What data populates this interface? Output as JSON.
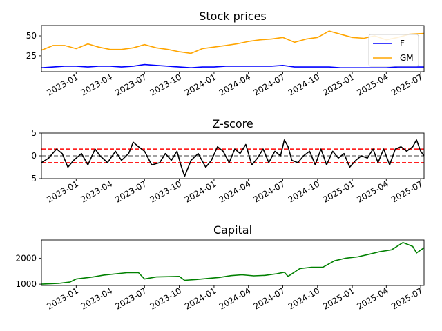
{
  "chart_data": [
    {
      "type": "line",
      "title": "Stock prices",
      "x_range": [
        "2022-10-01",
        "2025-07-10"
      ],
      "y_range": [
        5,
        63
      ],
      "y_ticks": [
        25,
        50
      ],
      "x_ticks": [
        "2023-01",
        "2023-04",
        "2023-07",
        "2023-10",
        "2024-01",
        "2024-04",
        "2024-07",
        "2024-10",
        "2025-01",
        "2025-04",
        "2025-07"
      ],
      "legend_placement": "right",
      "series": [
        {
          "name": "F",
          "color": "#0000ff",
          "x": [
            "2022-10-01",
            "2022-11-01",
            "2022-12-01",
            "2023-01-01",
            "2023-02-01",
            "2023-03-01",
            "2023-04-01",
            "2023-05-01",
            "2023-06-01",
            "2023-07-01",
            "2023-08-01",
            "2023-09-01",
            "2023-10-01",
            "2023-11-01",
            "2023-12-01",
            "2024-01-01",
            "2024-02-01",
            "2024-03-01",
            "2024-04-01",
            "2024-05-01",
            "2024-06-01",
            "2024-07-01",
            "2024-08-01",
            "2024-09-01",
            "2024-10-01",
            "2024-11-01",
            "2024-12-01",
            "2025-01-01",
            "2025-02-01",
            "2025-03-01",
            "2025-04-01",
            "2025-05-01",
            "2025-06-01",
            "2025-07-10"
          ],
          "values": [
            10,
            11,
            12,
            12,
            11,
            12,
            12,
            11,
            12,
            14,
            13,
            12,
            11,
            10,
            11,
            11,
            12,
            12,
            12,
            12,
            12,
            13,
            11,
            11,
            11,
            11,
            10,
            10,
            10,
            10,
            10,
            11,
            11,
            11
          ]
        },
        {
          "name": "GM",
          "color": "#ffa500",
          "x": [
            "2022-10-01",
            "2022-11-01",
            "2022-12-01",
            "2023-01-01",
            "2023-02-01",
            "2023-03-01",
            "2023-04-01",
            "2023-05-01",
            "2023-06-01",
            "2023-07-01",
            "2023-08-01",
            "2023-09-01",
            "2023-10-01",
            "2023-11-01",
            "2023-12-01",
            "2024-01-01",
            "2024-02-01",
            "2024-03-01",
            "2024-04-01",
            "2024-05-01",
            "2024-06-01",
            "2024-07-01",
            "2024-08-01",
            "2024-09-01",
            "2024-10-01",
            "2024-11-01",
            "2024-12-01",
            "2025-01-01",
            "2025-02-01",
            "2025-03-01",
            "2025-04-01",
            "2025-05-01",
            "2025-06-01",
            "2025-07-10"
          ],
          "values": [
            32,
            38,
            38,
            34,
            40,
            36,
            33,
            33,
            35,
            39,
            35,
            33,
            30,
            28,
            34,
            36,
            38,
            40,
            43,
            45,
            46,
            48,
            42,
            46,
            48,
            56,
            52,
            48,
            47,
            50,
            45,
            48,
            52,
            53
          ]
        }
      ]
    },
    {
      "type": "line",
      "title": "Z-score",
      "x_range": [
        "2022-10-01",
        "2025-07-10"
      ],
      "y_range": [
        -5,
        5
      ],
      "y_ticks": [
        -5,
        0,
        5
      ],
      "x_ticks": [
        "2023-01",
        "2023-04",
        "2023-07",
        "2023-10",
        "2024-01",
        "2024-04",
        "2024-07",
        "2024-10",
        "2025-01",
        "2025-04",
        "2025-07"
      ],
      "threshold_lines": [
        {
          "value": 1.5,
          "color": "#ff0000",
          "style": "dashed"
        },
        {
          "value": -1.5,
          "color": "#ff0000",
          "style": "dashed"
        },
        {
          "value": 0,
          "color": "#808080",
          "style": "dashed"
        }
      ],
      "series": [
        {
          "color": "#000000",
          "x": [
            "2022-10-01",
            "2022-10-20",
            "2022-11-10",
            "2022-11-25",
            "2022-12-10",
            "2022-12-25",
            "2023-01-15",
            "2023-02-01",
            "2023-02-20",
            "2023-03-05",
            "2023-03-25",
            "2023-04-15",
            "2023-05-01",
            "2023-05-20",
            "2023-06-01",
            "2023-06-15",
            "2023-07-01",
            "2023-07-20",
            "2023-08-10",
            "2023-08-25",
            "2023-09-10",
            "2023-09-25",
            "2023-10-05",
            "2023-10-15",
            "2023-11-01",
            "2023-11-20",
            "2023-12-10",
            "2023-12-25",
            "2024-01-10",
            "2024-01-25",
            "2024-02-10",
            "2024-02-25",
            "2024-03-10",
            "2024-03-25",
            "2024-04-10",
            "2024-04-25",
            "2024-05-10",
            "2024-05-25",
            "2024-06-10",
            "2024-06-25",
            "2024-07-05",
            "2024-07-15",
            "2024-07-25",
            "2024-08-10",
            "2024-08-25",
            "2024-09-10",
            "2024-09-25",
            "2024-10-10",
            "2024-10-25",
            "2024-11-10",
            "2024-11-25",
            "2024-12-10",
            "2024-12-25",
            "2025-01-10",
            "2025-01-25",
            "2025-02-10",
            "2025-02-25",
            "2025-03-10",
            "2025-03-25",
            "2025-04-10",
            "2025-04-25",
            "2025-05-10",
            "2025-05-25",
            "2025-06-10",
            "2025-06-20",
            "2025-07-01",
            "2025-07-10"
          ],
          "values": [
            -1.5,
            -0.5,
            1.5,
            0.5,
            -2.5,
            -1.0,
            0.5,
            -2.0,
            1.5,
            0.0,
            -1.5,
            1.0,
            -1.0,
            0.5,
            3.0,
            2.0,
            1.0,
            -2.0,
            -1.5,
            0.5,
            -1.0,
            1.0,
            -2.0,
            -4.5,
            -1.0,
            0.5,
            -2.5,
            -1.0,
            2.0,
            1.0,
            -1.5,
            1.5,
            0.5,
            2.5,
            -2.0,
            -0.5,
            1.5,
            -1.5,
            1.0,
            0.0,
            3.5,
            2.0,
            -1.0,
            -1.5,
            0.0,
            1.0,
            -2.0,
            1.5,
            -2.0,
            1.0,
            -0.5,
            0.5,
            -2.5,
            -1.0,
            0.0,
            -0.5,
            1.5,
            -1.5,
            1.5,
            -2.0,
            1.5,
            2.0,
            1.0,
            2.0,
            3.5,
            1.0,
            0.0
          ]
        }
      ]
    },
    {
      "type": "line",
      "title": "Capital",
      "x_range": [
        "2022-10-01",
        "2025-07-10"
      ],
      "y_range": [
        950,
        2700
      ],
      "y_ticks": [
        1000,
        2000
      ],
      "x_ticks": [
        "2023-01",
        "2023-04",
        "2023-07",
        "2023-10",
        "2024-01",
        "2024-04",
        "2024-07",
        "2024-10",
        "2025-01",
        "2025-04",
        "2025-07"
      ],
      "series": [
        {
          "color": "#008000",
          "x": [
            "2022-10-01",
            "2022-11-15",
            "2022-12-15",
            "2023-01-01",
            "2023-02-15",
            "2023-03-15",
            "2023-05-15",
            "2023-06-15",
            "2023-07-01",
            "2023-08-01",
            "2023-10-01",
            "2023-10-15",
            "2023-11-15",
            "2023-12-15",
            "2024-01-15",
            "2024-02-15",
            "2024-03-15",
            "2024-04-15",
            "2024-05-15",
            "2024-06-15",
            "2024-07-05",
            "2024-07-15",
            "2024-08-15",
            "2024-09-15",
            "2024-10-15",
            "2024-11-15",
            "2024-12-15",
            "2025-01-15",
            "2025-02-15",
            "2025-03-15",
            "2025-04-15",
            "2025-05-15",
            "2025-06-10",
            "2025-06-20",
            "2025-07-10"
          ],
          "values": [
            1000,
            1030,
            1080,
            1200,
            1280,
            1350,
            1440,
            1440,
            1200,
            1280,
            1300,
            1150,
            1180,
            1220,
            1260,
            1330,
            1360,
            1320,
            1340,
            1400,
            1460,
            1300,
            1600,
            1650,
            1650,
            1900,
            2000,
            2050,
            2150,
            2250,
            2320,
            2600,
            2450,
            2200,
            2400
          ]
        }
      ]
    }
  ]
}
